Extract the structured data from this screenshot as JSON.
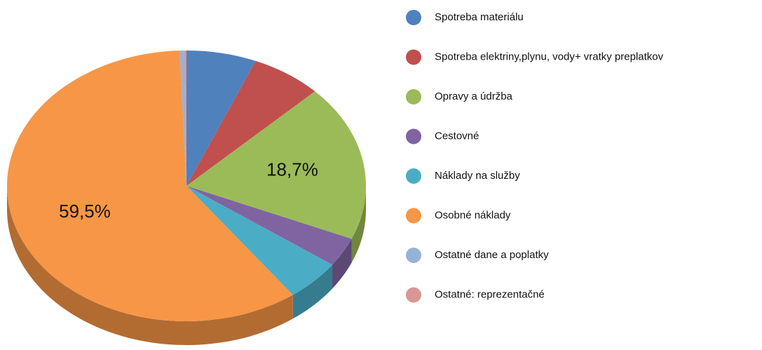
{
  "chart_data": {
    "type": "pie3d",
    "categories": [
      "Spotreba materiálu",
      "Spotreba elektriny,plynu, vody+ vratky preplatkov",
      "Opravy a údržba",
      "Cestovné",
      "Náklady na služby",
      "Osobné náklady",
      "Ostatné dane a poplatky",
      "Ostatné: reprezentačné"
    ],
    "values": [
      6.3,
      6.4,
      18.7,
      3.5,
      5,
      59.5,
      0.4,
      0.2
    ],
    "value_labels": [
      null,
      null,
      "18,7%",
      null,
      null,
      "59,5%",
      null,
      null
    ],
    "colors": [
      "#4f81bd",
      "#c0504d",
      "#9bbb59",
      "#8064a2",
      "#4bacc6",
      "#f79646",
      "#95b3d7",
      "#d99694"
    ],
    "legend": "right"
  }
}
